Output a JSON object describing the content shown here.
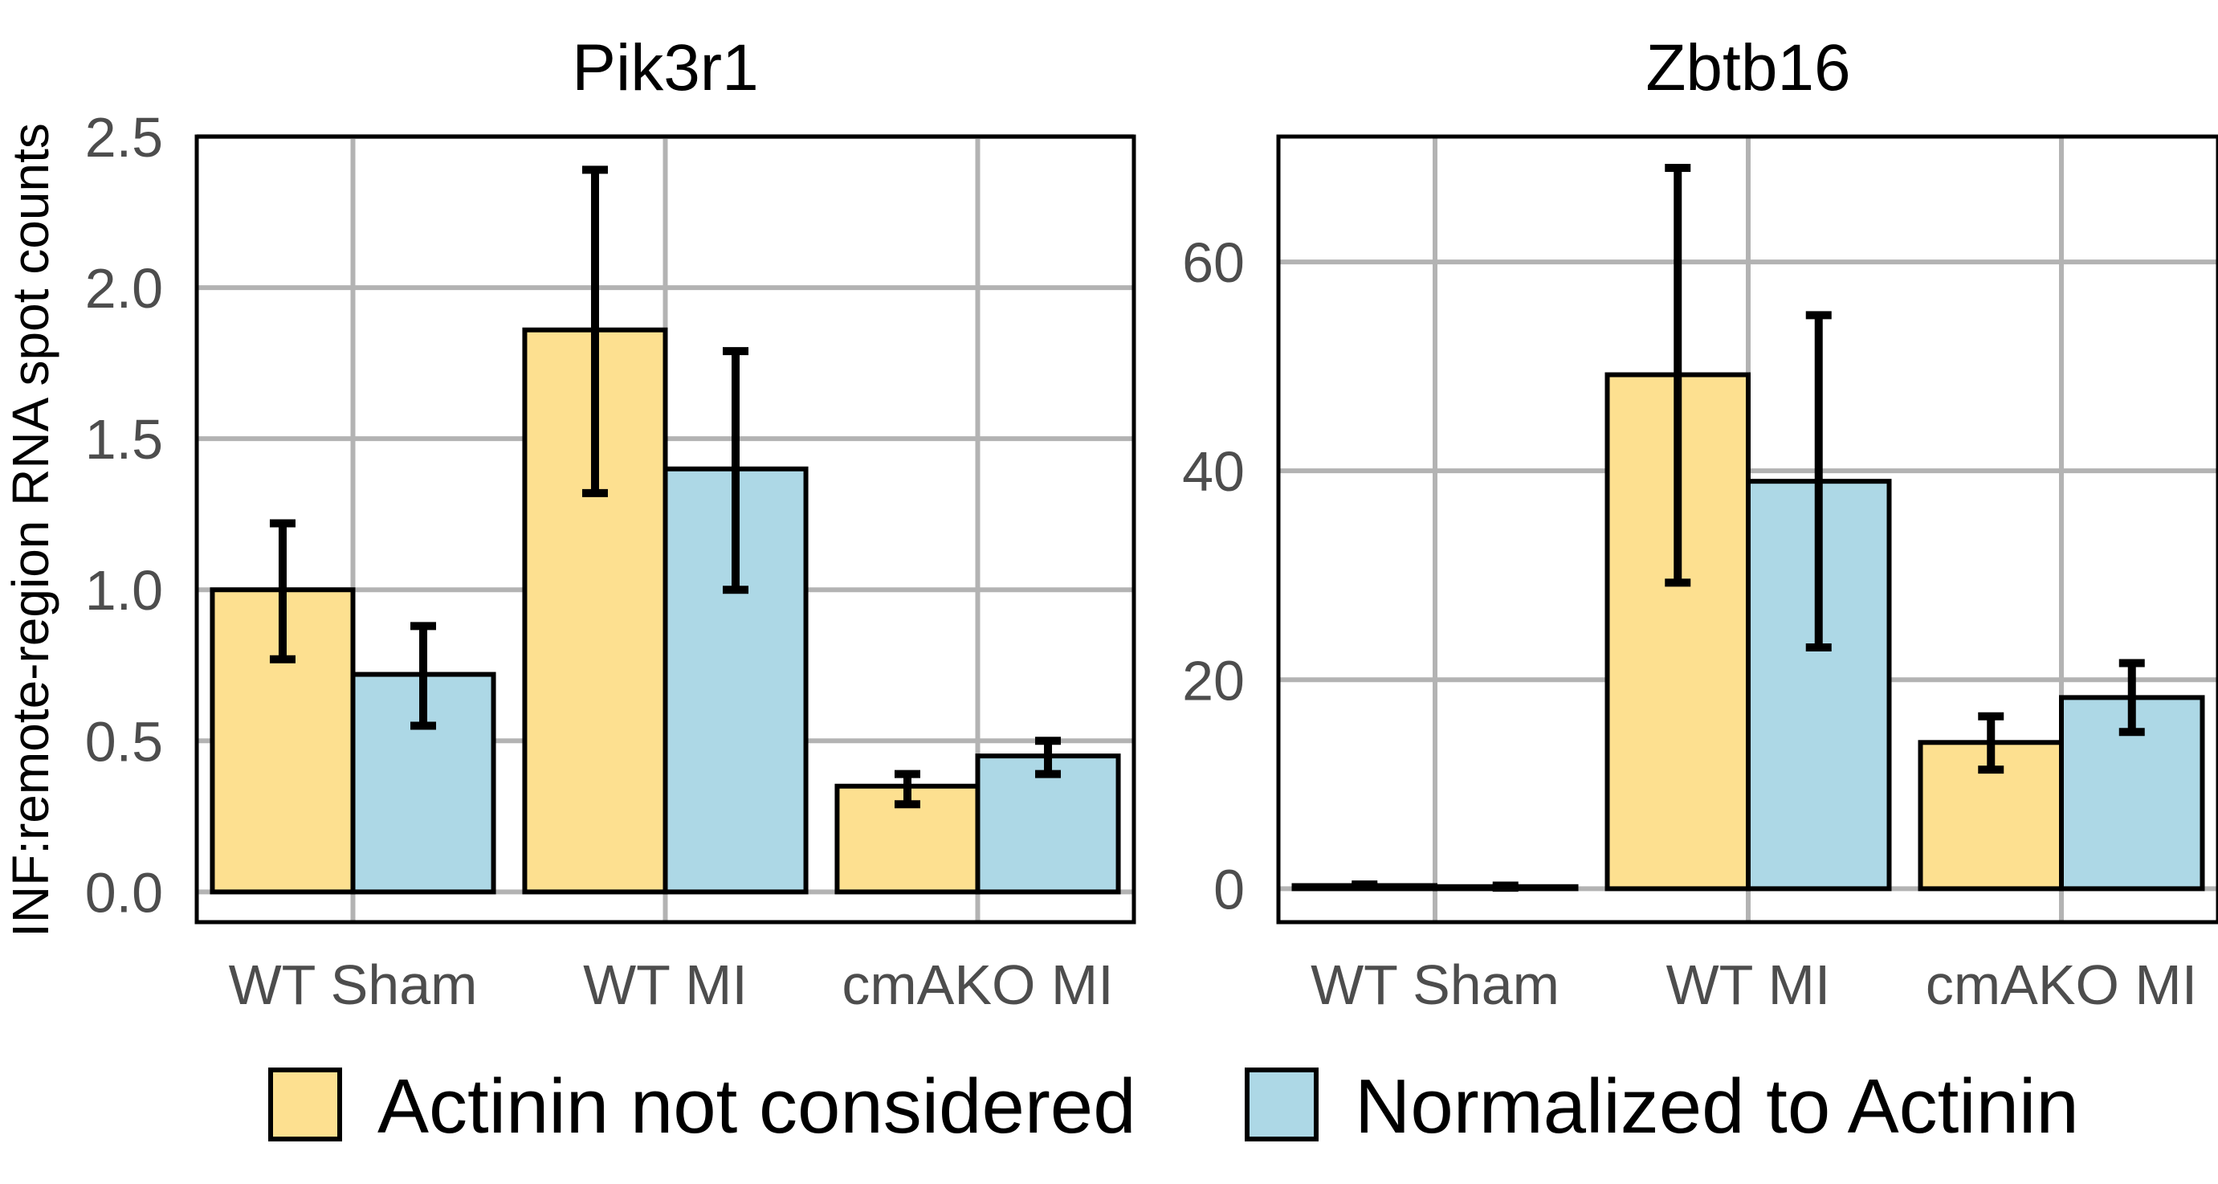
{
  "chart_data": {
    "type": "bar",
    "ylabel": "INF:remote-region RNA spot counts",
    "legend": {
      "placement": "bottom",
      "entries": [
        {
          "name": "Actinin not considered",
          "color": "#FDE090"
        },
        {
          "name": "Normalized to Actinin",
          "color": "#ADD8E6"
        }
      ]
    },
    "grid": true,
    "error_bars": true,
    "panels": [
      {
        "title": "Pik3r1",
        "categories": [
          "WT Sham",
          "WT MI",
          "cmAKO MI"
        ],
        "ylim": [
          -0.1,
          2.5
        ],
        "yticks": [
          0.0,
          0.5,
          1.0,
          1.5,
          2.0,
          2.5
        ],
        "ytick_labels": [
          "0.0",
          "0.5",
          "1.0",
          "1.5",
          "2.0",
          "2.5"
        ],
        "series": [
          {
            "name": "Actinin not considered",
            "values": [
              1.0,
              1.86,
              0.35
            ],
            "err_low": [
              0.77,
              1.32,
              0.29
            ],
            "err_high": [
              1.22,
              2.39,
              0.39
            ]
          },
          {
            "name": "Normalized to Actinin",
            "values": [
              0.72,
              1.4,
              0.45
            ],
            "err_low": [
              0.55,
              1.0,
              0.39
            ],
            "err_high": [
              0.88,
              1.79,
              0.5
            ]
          }
        ]
      },
      {
        "title": "Zbtb16",
        "categories": [
          "WT Sham",
          "WT MI",
          "cmAKO MI"
        ],
        "ylim": [
          -3.2,
          72
        ],
        "yticks": [
          0,
          20,
          40,
          60
        ],
        "ytick_labels": [
          "0",
          "20",
          "40",
          "60"
        ],
        "series": [
          {
            "name": "Actinin not considered",
            "values": [
              0.3,
              49.2,
              14.0
            ],
            "err_low": [
              0.2,
              29.3,
              11.4
            ],
            "err_high": [
              0.4,
              69.0,
              16.5
            ]
          },
          {
            "name": "Normalized to Actinin",
            "values": [
              0.2,
              39.0,
              18.3
            ],
            "err_low": [
              0.1,
              23.1,
              15.0
            ],
            "err_high": [
              0.3,
              54.9,
              21.6
            ]
          }
        ]
      }
    ]
  }
}
